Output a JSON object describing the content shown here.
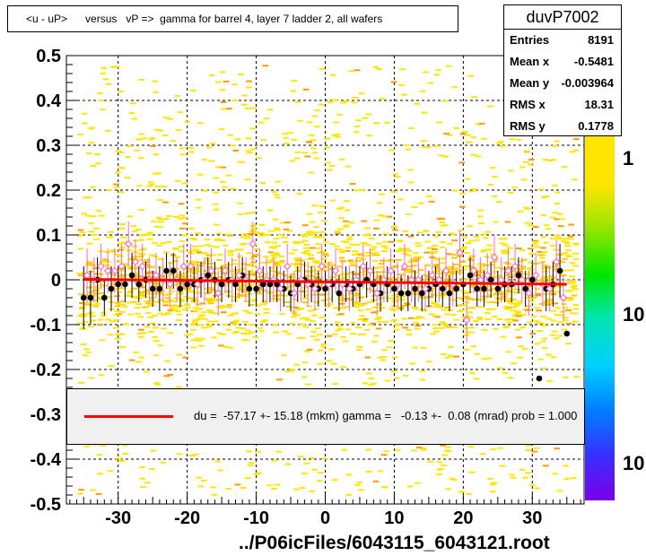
{
  "title": "<u - uP>      versus   vP =>  gamma for barrel 4, layer 7 ladder 2, all wafers",
  "stats": {
    "name": "duvP7002",
    "rows": [
      {
        "label": "Entries",
        "value": "8191"
      },
      {
        "label": "Mean x",
        "value": "-0.5481"
      },
      {
        "label": "Mean y",
        "value": "-0.003964"
      },
      {
        "label": "RMS x",
        "value": "18.31"
      },
      {
        "label": "RMS y",
        "value": "0.1778"
      }
    ]
  },
  "fit_legend": "du =  -57.17 +- 15.18 (mkm) gamma =   -0.13 +-  0.08 (mrad) prob = 1.000",
  "xlabel": "../P06icFiles/6043115_6043121.root",
  "colors": {
    "fit_line": "#ff0000",
    "profile_black": "#000000",
    "profile_pink": "#ff66cc",
    "histogram_fill": "#ffe600"
  },
  "chart_data": {
    "type": "scatter",
    "title": "<u - uP>      versus   vP =>  gamma for barrel 4, layer 7 ladder 2, all wafers",
    "xlabel": "../P06icFiles/6043115_6043121.root",
    "ylabel": "",
    "xlim": [
      -37.5,
      37.5
    ],
    "ylim": [
      -0.5,
      0.5
    ],
    "x_ticks": [
      -30,
      -20,
      -10,
      0,
      10,
      20,
      30
    ],
    "y_ticks": [
      -0.5,
      -0.4,
      -0.3,
      -0.2,
      -0.1,
      0,
      0.1,
      0.2,
      0.3,
      0.4,
      0.5
    ],
    "grid": true,
    "z_scale": "log",
    "z_tick_labels": [
      "1",
      "10",
      "10"
    ],
    "fit": {
      "du_mkm": -57.17,
      "du_err_mkm": 15.18,
      "gamma_mrad": -0.13,
      "gamma_err_mrad": 0.08,
      "prob": 1.0,
      "x_range": [
        -35,
        35
      ],
      "y_at_xmin": 0.001,
      "y_at_xmax": -0.01
    },
    "profile_black": {
      "x": [
        -35,
        -34,
        -33,
        -32,
        -31,
        -30,
        -29,
        -28,
        -27,
        -26,
        -25,
        -24,
        -23,
        -22,
        -21,
        -20,
        -19,
        -18,
        -17,
        -16,
        -15,
        -14,
        -13,
        -12,
        -11,
        -10,
        -9,
        -8,
        -7,
        -6,
        -5,
        -4,
        -3,
        -2,
        -1,
        0,
        1,
        2,
        3,
        4,
        5,
        6,
        7,
        8,
        9,
        10,
        11,
        12,
        13,
        14,
        15,
        16,
        17,
        18,
        19,
        20,
        21,
        22,
        23,
        24,
        25,
        26,
        27,
        28,
        29,
        30,
        31,
        32,
        33,
        34,
        35
      ],
      "y": [
        -0.04,
        -0.04,
        0.0,
        -0.04,
        -0.02,
        -0.01,
        -0.01,
        0.01,
        -0.01,
        0.0,
        -0.02,
        -0.02,
        0.02,
        0.02,
        -0.02,
        -0.01,
        -0.01,
        0.0,
        0.01,
        0.0,
        -0.01,
        0.0,
        -0.01,
        0.01,
        -0.02,
        -0.02,
        -0.01,
        -0.01,
        -0.01,
        -0.02,
        -0.03,
        -0.01,
        0.0,
        -0.01,
        -0.02,
        -0.02,
        -0.01,
        -0.03,
        -0.01,
        -0.02,
        -0.01,
        0.0,
        -0.01,
        -0.03,
        -0.01,
        -0.02,
        -0.03,
        -0.03,
        -0.02,
        -0.03,
        -0.02,
        -0.01,
        -0.02,
        -0.03,
        -0.02,
        -0.01,
        0.01,
        -0.02,
        -0.02,
        0.0,
        -0.02,
        -0.01,
        -0.01,
        0.01,
        -0.02,
        0.0,
        -0.22,
        -0.02,
        -0.01,
        0.02,
        -0.12
      ],
      "err": [
        0.07,
        0.06,
        0.05,
        0.04,
        0.05,
        0.04,
        0.04,
        0.05,
        0.04,
        0.04,
        0.04,
        0.05,
        0.04,
        0.04,
        0.04,
        0.04,
        0.04,
        0.04,
        0.04,
        0.04,
        0.04,
        0.04,
        0.04,
        0.04,
        0.04,
        0.04,
        0.04,
        0.04,
        0.04,
        0.04,
        0.04,
        0.04,
        0.04,
        0.04,
        0.04,
        0.04,
        0.04,
        0.04,
        0.04,
        0.04,
        0.04,
        0.04,
        0.04,
        0.04,
        0.04,
        0.04,
        0.04,
        0.04,
        0.04,
        0.04,
        0.04,
        0.04,
        0.04,
        0.04,
        0.04,
        0.04,
        0.04,
        0.04,
        0.04,
        0.04,
        0.04,
        0.04,
        0.04,
        0.04,
        0.04,
        0.04,
        0.0,
        0.05,
        0.05,
        0.06,
        0.0
      ]
    },
    "profile_pink": {
      "x": [
        -34.5,
        -33.5,
        -32.5,
        -31.5,
        -30.5,
        -29.5,
        -28.5,
        -27.5,
        -26.5,
        -25.5,
        -24.5,
        -23.5,
        -22.5,
        -21.5,
        -20.5,
        -19.5,
        -18.5,
        -17.5,
        -16.5,
        -15.5,
        -14.5,
        -13.5,
        -12.5,
        -11.5,
        -10.5,
        -9.5,
        -8.5,
        -7.5,
        -6.5,
        -5.5,
        -4.5,
        -3.5,
        -2.5,
        -1.5,
        -0.5,
        0.5,
        1.5,
        2.5,
        3.5,
        4.5,
        5.5,
        6.5,
        7.5,
        8.5,
        9.5,
        10.5,
        11.5,
        12.5,
        13.5,
        14.5,
        15.5,
        16.5,
        17.5,
        18.5,
        19.5,
        20.5,
        21.5,
        22.5,
        23.5,
        24.5,
        25.5,
        26.5,
        27.5,
        28.5,
        29.5,
        30.5,
        31.5,
        32.5,
        33.5,
        34.5
      ],
      "y": [
        0.01,
        0.0,
        0.03,
        0.02,
        0.02,
        0.03,
        0.08,
        0.04,
        0.03,
        0.0,
        0.01,
        0.0,
        -0.01,
        0.0,
        0.03,
        0.03,
        -0.01,
        0.0,
        0.02,
        -0.03,
        0.02,
        0.0,
        0.01,
        0.0,
        0.08,
        0.02,
        0.0,
        0.0,
        -0.02,
        0.03,
        -0.03,
        0.0,
        -0.01,
        -0.02,
        0.03,
        -0.01,
        0.02,
        -0.01,
        -0.02,
        0.0,
        0.03,
        0.02,
        -0.03,
        0.0,
        0.02,
        -0.01,
        0.03,
        0.0,
        0.0,
        -0.02,
        0.01,
        0.0,
        0.02,
        -0.01,
        0.06,
        -0.09,
        0.02,
        0.0,
        0.01,
        0.05,
        0.0,
        0.02,
        0.03,
        0.0,
        -0.03,
        0.01,
        -0.01,
        -0.02,
        0.04,
        -0.04
      ],
      "err": [
        0.06,
        0.05,
        0.05,
        0.05,
        0.05,
        0.05,
        0.05,
        0.05,
        0.05,
        0.05,
        0.05,
        0.05,
        0.05,
        0.05,
        0.05,
        0.05,
        0.05,
        0.05,
        0.05,
        0.05,
        0.05,
        0.05,
        0.05,
        0.05,
        0.05,
        0.05,
        0.05,
        0.05,
        0.05,
        0.05,
        0.05,
        0.05,
        0.05,
        0.05,
        0.05,
        0.05,
        0.05,
        0.05,
        0.05,
        0.05,
        0.05,
        0.05,
        0.05,
        0.05,
        0.05,
        0.05,
        0.05,
        0.05,
        0.05,
        0.05,
        0.05,
        0.05,
        0.05,
        0.05,
        0.05,
        0.05,
        0.05,
        0.05,
        0.05,
        0.05,
        0.05,
        0.05,
        0.05,
        0.05,
        0.05,
        0.05,
        0.05,
        0.05,
        0.05,
        0.05
      ]
    }
  }
}
